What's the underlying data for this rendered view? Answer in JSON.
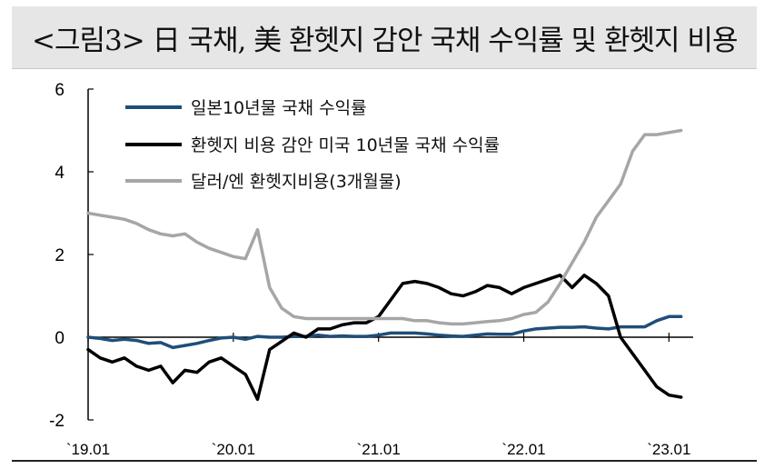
{
  "title": "<그림3> 日 국채, 美 환헷지 감안 국채 수익률 및 환헷지 비용",
  "chart_data": {
    "type": "line",
    "title": "<그림3> 日 국채, 美 환헷지 감안 국채 수익률 및 환헷지 비용",
    "xlabel": "",
    "ylabel": "",
    "x_ticks": [
      "`19.01",
      "`20.01",
      "`21.01",
      "`22.01",
      "`23.01"
    ],
    "x_range": [
      "2019-01",
      "2023-03"
    ],
    "ylim": [
      -2,
      6
    ],
    "y_ticks": [
      -2,
      0,
      2,
      4,
      6
    ],
    "grid": false,
    "legend_position": "top-left",
    "series": [
      {
        "name": "일본10년물 국채 수익률",
        "color": "#1f4e79",
        "points": [
          [
            "2019-01",
            0.0
          ],
          [
            "2019-02",
            -0.03
          ],
          [
            "2019-03",
            -0.08
          ],
          [
            "2019-04",
            -0.05
          ],
          [
            "2019-05",
            -0.08
          ],
          [
            "2019-06",
            -0.15
          ],
          [
            "2019-07",
            -0.13
          ],
          [
            "2019-08",
            -0.25
          ],
          [
            "2019-09",
            -0.2
          ],
          [
            "2019-10",
            -0.15
          ],
          [
            "2019-11",
            -0.08
          ],
          [
            "2019-12",
            -0.02
          ],
          [
            "2020-01",
            0.0
          ],
          [
            "2020-02",
            -0.05
          ],
          [
            "2020-03",
            0.02
          ],
          [
            "2020-04",
            0.0
          ],
          [
            "2020-05",
            0.0
          ],
          [
            "2020-06",
            0.02
          ],
          [
            "2020-07",
            0.02
          ],
          [
            "2020-08",
            0.05
          ],
          [
            "2020-09",
            0.02
          ],
          [
            "2020-10",
            0.03
          ],
          [
            "2020-11",
            0.02
          ],
          [
            "2020-12",
            0.02
          ],
          [
            "2021-01",
            0.05
          ],
          [
            "2021-02",
            0.1
          ],
          [
            "2021-03",
            0.1
          ],
          [
            "2021-04",
            0.1
          ],
          [
            "2021-05",
            0.08
          ],
          [
            "2021-06",
            0.05
          ],
          [
            "2021-07",
            0.03
          ],
          [
            "2021-08",
            0.02
          ],
          [
            "2021-09",
            0.05
          ],
          [
            "2021-10",
            0.08
          ],
          [
            "2021-11",
            0.07
          ],
          [
            "2021-12",
            0.07
          ],
          [
            "2022-01",
            0.15
          ],
          [
            "2022-02",
            0.2
          ],
          [
            "2022-03",
            0.22
          ],
          [
            "2022-04",
            0.24
          ],
          [
            "2022-05",
            0.24
          ],
          [
            "2022-06",
            0.25
          ],
          [
            "2022-07",
            0.22
          ],
          [
            "2022-08",
            0.2
          ],
          [
            "2022-09",
            0.25
          ],
          [
            "2022-10",
            0.25
          ],
          [
            "2022-11",
            0.25
          ],
          [
            "2022-12",
            0.4
          ],
          [
            "2023-01",
            0.5
          ],
          [
            "2023-02",
            0.5
          ]
        ]
      },
      {
        "name": "환헷지 비용 감안 미국 10년물 국채 수익률",
        "color": "#000000",
        "points": [
          [
            "2019-01",
            -0.3
          ],
          [
            "2019-02",
            -0.5
          ],
          [
            "2019-03",
            -0.6
          ],
          [
            "2019-04",
            -0.5
          ],
          [
            "2019-05",
            -0.7
          ],
          [
            "2019-06",
            -0.8
          ],
          [
            "2019-07",
            -0.7
          ],
          [
            "2019-08",
            -1.1
          ],
          [
            "2019-09",
            -0.8
          ],
          [
            "2019-10",
            -0.85
          ],
          [
            "2019-11",
            -0.6
          ],
          [
            "2019-12",
            -0.5
          ],
          [
            "2020-01",
            -0.7
          ],
          [
            "2020-02",
            -0.9
          ],
          [
            "2020-03",
            -1.5
          ],
          [
            "2020-04",
            -0.3
          ],
          [
            "2020-05",
            -0.1
          ],
          [
            "2020-06",
            0.1
          ],
          [
            "2020-07",
            0.0
          ],
          [
            "2020-08",
            0.2
          ],
          [
            "2020-09",
            0.2
          ],
          [
            "2020-10",
            0.3
          ],
          [
            "2020-11",
            0.35
          ],
          [
            "2020-12",
            0.35
          ],
          [
            "2021-01",
            0.5
          ],
          [
            "2021-02",
            0.9
          ],
          [
            "2021-03",
            1.3
          ],
          [
            "2021-04",
            1.35
          ],
          [
            "2021-05",
            1.3
          ],
          [
            "2021-06",
            1.2
          ],
          [
            "2021-07",
            1.05
          ],
          [
            "2021-08",
            1.0
          ],
          [
            "2021-09",
            1.1
          ],
          [
            "2021-10",
            1.25
          ],
          [
            "2021-11",
            1.2
          ],
          [
            "2021-12",
            1.05
          ],
          [
            "2022-01",
            1.2
          ],
          [
            "2022-02",
            1.3
          ],
          [
            "2022-03",
            1.4
          ],
          [
            "2022-04",
            1.5
          ],
          [
            "2022-05",
            1.2
          ],
          [
            "2022-06",
            1.5
          ],
          [
            "2022-07",
            1.3
          ],
          [
            "2022-08",
            1.0
          ],
          [
            "2022-09",
            0.0
          ],
          [
            "2022-10",
            -0.4
          ],
          [
            "2022-11",
            -0.8
          ],
          [
            "2022-12",
            -1.2
          ],
          [
            "2023-01",
            -1.4
          ],
          [
            "2023-02",
            -1.45
          ]
        ]
      },
      {
        "name": "달러/엔 환헷지비용(3개월물)",
        "color": "#a6a6a6",
        "points": [
          [
            "2019-01",
            3.0
          ],
          [
            "2019-02",
            2.95
          ],
          [
            "2019-03",
            2.9
          ],
          [
            "2019-04",
            2.85
          ],
          [
            "2019-05",
            2.75
          ],
          [
            "2019-06",
            2.6
          ],
          [
            "2019-07",
            2.5
          ],
          [
            "2019-08",
            2.45
          ],
          [
            "2019-09",
            2.5
          ],
          [
            "2019-10",
            2.3
          ],
          [
            "2019-11",
            2.15
          ],
          [
            "2019-12",
            2.05
          ],
          [
            "2020-01",
            1.95
          ],
          [
            "2020-02",
            1.9
          ],
          [
            "2020-03",
            2.6
          ],
          [
            "2020-04",
            1.2
          ],
          [
            "2020-05",
            0.7
          ],
          [
            "2020-06",
            0.5
          ],
          [
            "2020-07",
            0.45
          ],
          [
            "2020-08",
            0.45
          ],
          [
            "2020-09",
            0.45
          ],
          [
            "2020-10",
            0.45
          ],
          [
            "2020-11",
            0.45
          ],
          [
            "2020-12",
            0.45
          ],
          [
            "2021-01",
            0.45
          ],
          [
            "2021-02",
            0.45
          ],
          [
            "2021-03",
            0.45
          ],
          [
            "2021-04",
            0.4
          ],
          [
            "2021-05",
            0.4
          ],
          [
            "2021-06",
            0.35
          ],
          [
            "2021-07",
            0.32
          ],
          [
            "2021-08",
            0.32
          ],
          [
            "2021-09",
            0.35
          ],
          [
            "2021-10",
            0.38
          ],
          [
            "2021-11",
            0.4
          ],
          [
            "2021-12",
            0.45
          ],
          [
            "2022-01",
            0.55
          ],
          [
            "2022-02",
            0.6
          ],
          [
            "2022-03",
            0.85
          ],
          [
            "2022-04",
            1.3
          ],
          [
            "2022-05",
            1.8
          ],
          [
            "2022-06",
            2.3
          ],
          [
            "2022-07",
            2.9
          ],
          [
            "2022-08",
            3.3
          ],
          [
            "2022-09",
            3.7
          ],
          [
            "2022-10",
            4.5
          ],
          [
            "2022-11",
            4.9
          ],
          [
            "2022-12",
            4.9
          ],
          [
            "2023-01",
            4.95
          ],
          [
            "2023-02",
            5.0
          ]
        ]
      }
    ]
  }
}
